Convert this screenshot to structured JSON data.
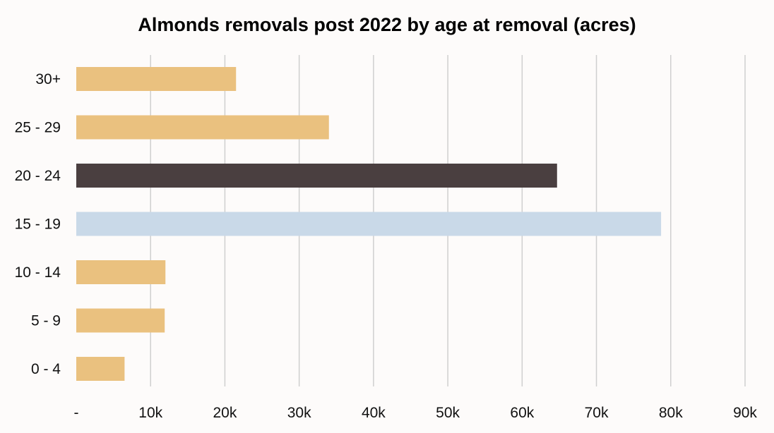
{
  "chart_data": {
    "type": "bar",
    "orientation": "horizontal",
    "title": "Almonds removals post 2022 by age at removal (acres)",
    "xlabel": "",
    "ylabel": "",
    "categories": [
      "30+",
      "25 - 29",
      "20 - 24",
      "15 - 19",
      "10 - 14",
      "5 - 9",
      "0 - 4"
    ],
    "values": [
      21500,
      34000,
      64700,
      78700,
      12000,
      11900,
      6500
    ],
    "bar_colors": [
      "#eac17f",
      "#eac17f",
      "#4a3f40",
      "#c9d9e8",
      "#eac17f",
      "#eac17f",
      "#eac17f"
    ],
    "xlim": [
      0,
      90000
    ],
    "x_ticks": [
      0,
      10000,
      20000,
      30000,
      40000,
      50000,
      60000,
      70000,
      80000,
      90000
    ],
    "x_tick_labels": [
      "-",
      "10k",
      "20k",
      "30k",
      "40k",
      "50k",
      "60k",
      "70k",
      "80k",
      "90k"
    ],
    "grid": "vertical",
    "legend": "none"
  }
}
